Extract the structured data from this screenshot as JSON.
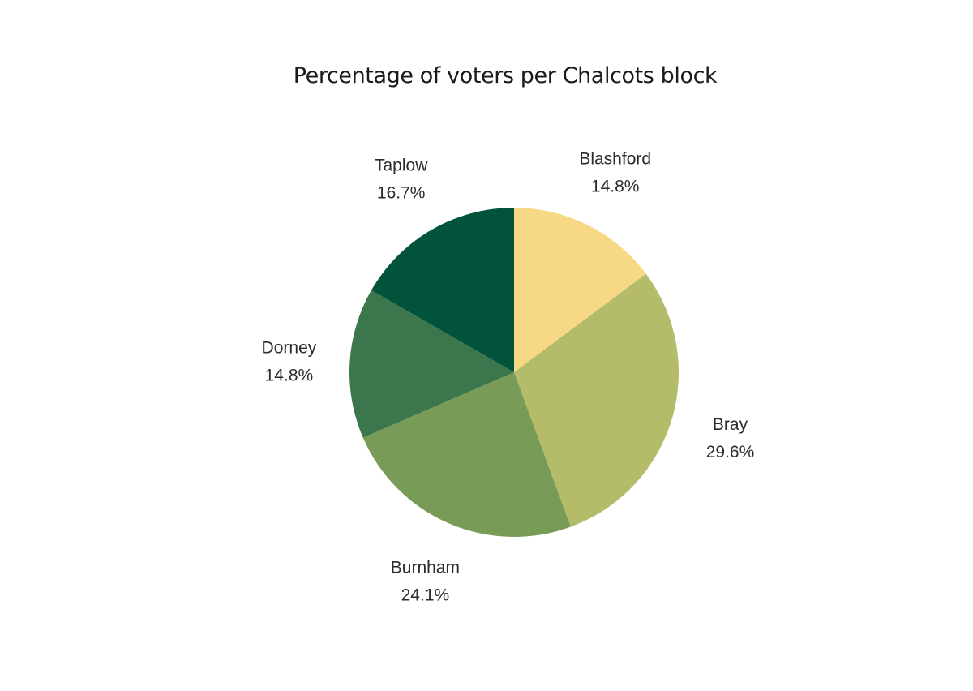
{
  "chart_data": {
    "type": "pie",
    "title": "Percentage of voters per Chalcots block",
    "slices": [
      {
        "label": "Blashford",
        "value": 14.8,
        "display": "14.8%",
        "color": "#f7d885"
      },
      {
        "label": "Bray",
        "value": 29.6,
        "display": "29.6%",
        "color": "#b4bc6a"
      },
      {
        "label": "Burnham",
        "value": 24.1,
        "display": "24.1%",
        "color": "#789c58"
      },
      {
        "label": "Dorney",
        "value": 14.8,
        "display": "14.8%",
        "color": "#3c764c"
      },
      {
        "label": "Taplow",
        "value": 16.7,
        "display": "16.7%",
        "color": "#02533c"
      }
    ],
    "start_angle": "12 o'clock",
    "direction": "clockwise",
    "legend": "none"
  }
}
